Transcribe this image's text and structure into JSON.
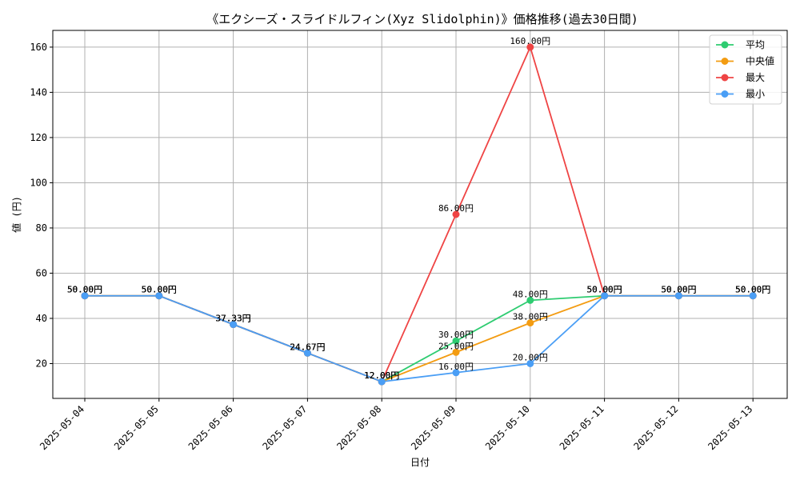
{
  "chart_data": {
    "type": "line",
    "title": "《エクシーズ・スライドルフィン(Xyz Slidolphin)》価格推移(過去30日間)",
    "xlabel": "日付",
    "ylabel": "値 (円)",
    "ylim": [
      4.6,
      167.4
    ],
    "yticks": [
      20,
      40,
      60,
      80,
      100,
      120,
      140,
      160
    ],
    "grid": true,
    "legend_position": "top-right",
    "value_suffix": "円",
    "categories": [
      "2025-05-04",
      "2025-05-05",
      "2025-05-06",
      "2025-05-07",
      "2025-05-08",
      "2025-05-09",
      "2025-05-10",
      "2025-05-11",
      "2025-05-12",
      "2025-05-13"
    ],
    "series": [
      {
        "name": "平均",
        "color": "#2ecc71",
        "values": [
          50,
          50,
          37.33,
          24.67,
          12,
          30,
          48,
          50,
          50,
          50
        ]
      },
      {
        "name": "中央値",
        "color": "#f39c12",
        "values": [
          50,
          50,
          37.33,
          24.67,
          12,
          25,
          38,
          50,
          50,
          50
        ]
      },
      {
        "name": "最大",
        "color": "#ef4444",
        "values": [
          50,
          50,
          37.33,
          24.67,
          12,
          86,
          160,
          50,
          50,
          50
        ]
      },
      {
        "name": "最小",
        "color": "#4a9ef5",
        "values": [
          50,
          50,
          37.33,
          24.67,
          12,
          16,
          20,
          50,
          50,
          50
        ]
      }
    ]
  }
}
